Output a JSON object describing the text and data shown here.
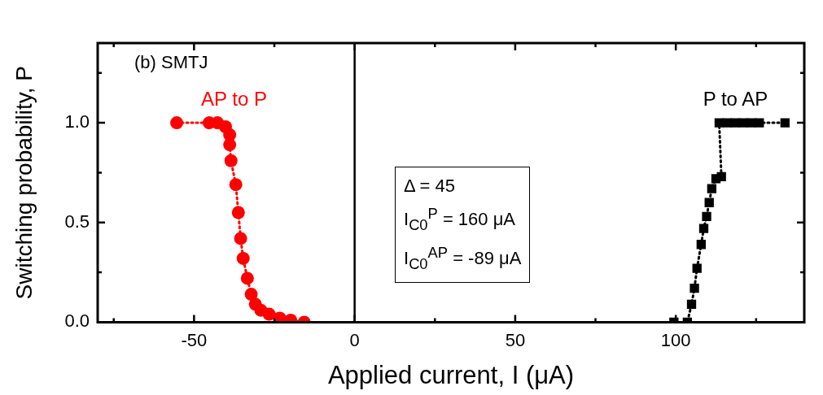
{
  "chart_data": {
    "type": "line",
    "xlabel": "Applied current, I (μA)",
    "ylabel": "Switching probability, P",
    "xlim": [
      -80,
      140
    ],
    "ylim": [
      0,
      1.4
    ],
    "xticks": [
      {
        "value": -75,
        "label": null
      },
      -50,
      {
        "value": -25,
        "label": null
      },
      0,
      {
        "value": 25,
        "label": null
      },
      50,
      {
        "value": 75,
        "label": null
      },
      100,
      {
        "value": 125,
        "label": null
      }
    ],
    "yticks": [
      {
        "value": 0,
        "label": "0.0"
      },
      {
        "value": 0.25,
        "label": null
      },
      {
        "value": 0.5,
        "label": "0.5"
      },
      {
        "value": 0.75,
        "label": null
      },
      {
        "value": 1,
        "label": "1.0"
      },
      {
        "value": 1.25,
        "label": null
      }
    ],
    "grid": false,
    "legend": false,
    "line_style": "dotted",
    "ref_lines": [
      {
        "axis": "x",
        "value": 0,
        "color": "#000000",
        "line_style": "solid"
      }
    ],
    "annotations": [
      "(b) SMTJ",
      "Δ = 45",
      "I$_{C0}$$^{P}$ = 160 μA",
      "I$_{C0}$$^{AP}$ = -89 μA"
    ],
    "series": [
      {
        "name": "AP to P",
        "color": "#ff0000",
        "marker": "circle",
        "x": [
          -55.4,
          -45.3,
          -42.7,
          -40.2,
          -38.9,
          -38.9,
          -38.5,
          -37.0,
          -36.2,
          -35.5,
          -34.7,
          -33.4,
          -32.2,
          -30.9,
          -29.2,
          -26.6,
          -23.3,
          -19.9,
          -15.7
        ],
        "values": [
          1.0,
          1.0,
          1.0,
          0.98,
          0.94,
          0.89,
          0.81,
          0.69,
          0.55,
          0.42,
          0.32,
          0.22,
          0.14,
          0.09,
          0.06,
          0.04,
          0.02,
          0.01,
          0.0
        ]
      },
      {
        "name": "P to AP",
        "color": "#000000",
        "marker": "square",
        "x": [
          99.4,
          103.6,
          104.9,
          105.8,
          106.6,
          107.9,
          108.7,
          109.6,
          110.4,
          111.2,
          112.5,
          114.2,
          113.5,
          116,
          118.5,
          121,
          123.5,
          126,
          134
        ],
        "values": [
          0.0,
          0.0,
          0.09,
          0.17,
          0.27,
          0.39,
          0.47,
          0.53,
          0.6,
          0.67,
          0.72,
          0.73,
          1.0,
          1.0,
          1.0,
          1.0,
          1.0,
          1.0,
          1.0
        ]
      }
    ]
  }
}
